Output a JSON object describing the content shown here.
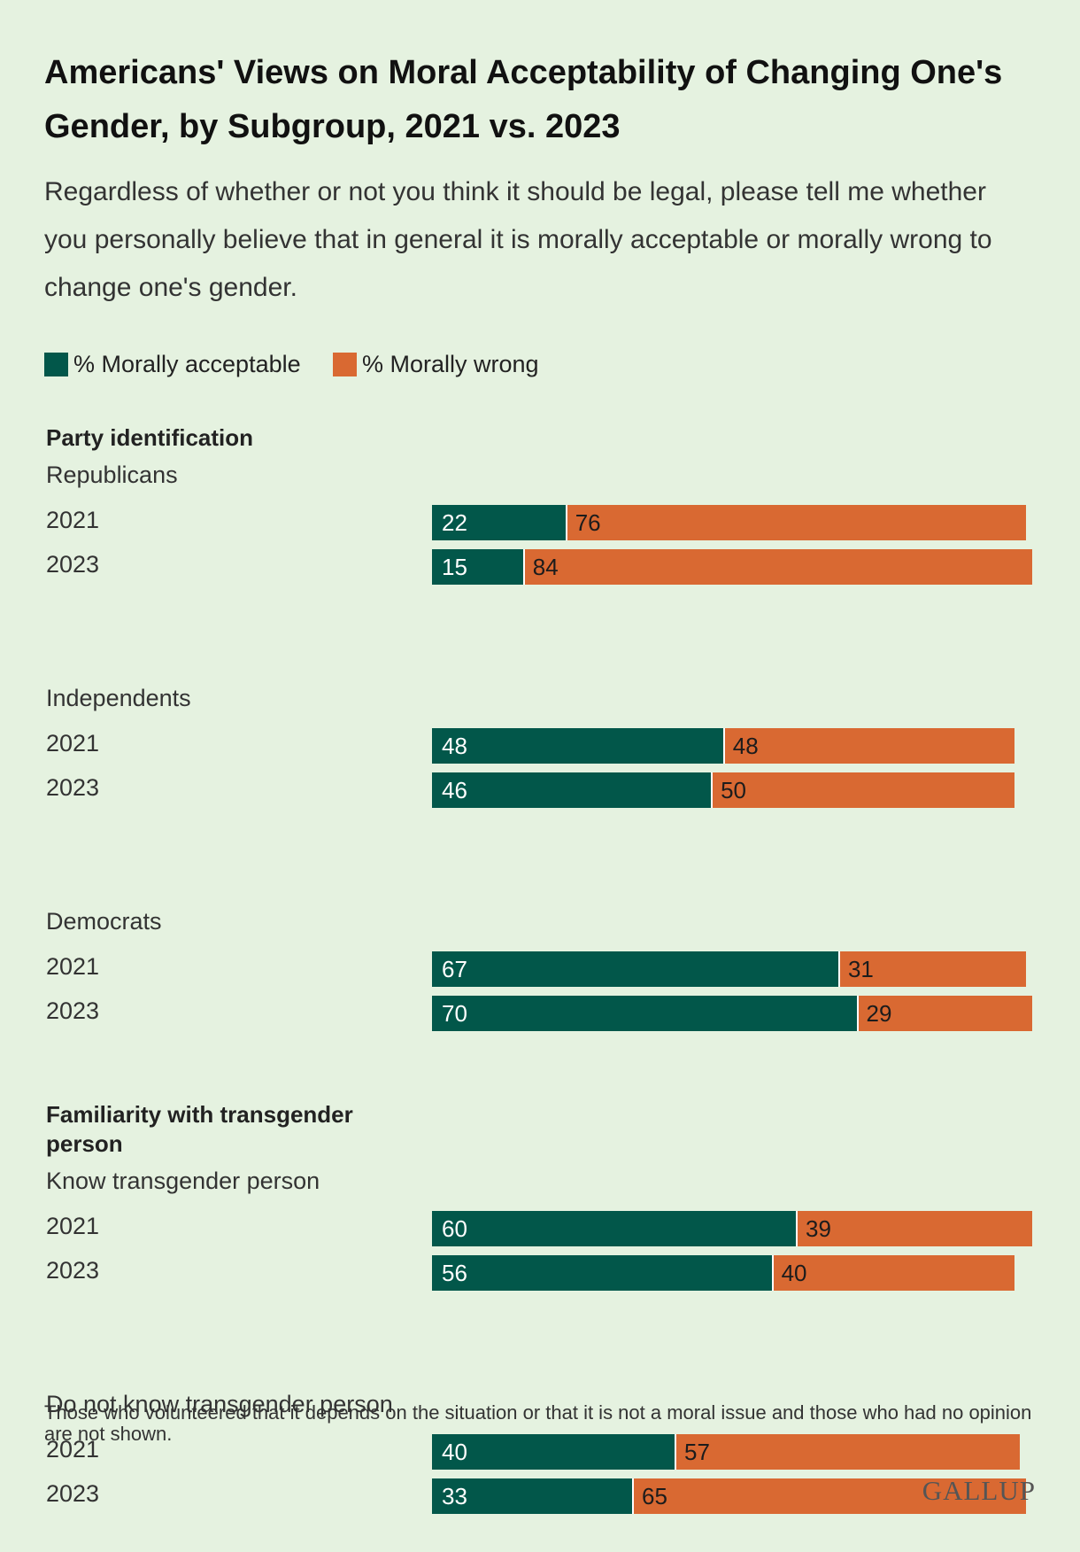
{
  "title": "Americans' Views on Moral Acceptability of Changing One's Gender, by Subgroup, 2021 vs. 2023",
  "subtitle": "Regardless of whether or not you think it should be legal, please tell me whether you personally believe that in general it is morally acceptable or morally wrong to change one's gender.",
  "footnote": "Those who volunteered that it depends on the situation or that it is not a moral issue and those who had no opinion are not shown.",
  "logo": "GALLUP",
  "colors": {
    "acceptable": "#02574a",
    "wrong": "#d96932",
    "background": "#e5f2e0"
  },
  "chart_data": {
    "type": "bar",
    "orientation": "horizontal",
    "stacked": true,
    "xlim": [
      0,
      100
    ],
    "legend": {
      "position": "top-left",
      "entries": [
        "% Morally acceptable",
        "% Morally wrong"
      ]
    },
    "series": [
      {
        "name": "% Morally acceptable",
        "color": "#02574a"
      },
      {
        "name": "% Morally wrong",
        "color": "#d96932"
      }
    ],
    "sections": [
      {
        "label": "Party identification",
        "groups": [
          {
            "label": "Republicans",
            "rows": [
              {
                "year": "2021",
                "acceptable": 22,
                "wrong": 76
              },
              {
                "year": "2023",
                "acceptable": 15,
                "wrong": 84
              }
            ]
          },
          {
            "label": "Independents",
            "rows": [
              {
                "year": "2021",
                "acceptable": 48,
                "wrong": 48
              },
              {
                "year": "2023",
                "acceptable": 46,
                "wrong": 50
              }
            ]
          },
          {
            "label": "Democrats",
            "rows": [
              {
                "year": "2021",
                "acceptable": 67,
                "wrong": 31
              },
              {
                "year": "2023",
                "acceptable": 70,
                "wrong": 29
              }
            ]
          }
        ]
      },
      {
        "label": "Familiarity with transgender person",
        "groups": [
          {
            "label": "Know transgender person",
            "rows": [
              {
                "year": "2021",
                "acceptable": 60,
                "wrong": 39
              },
              {
                "year": "2023",
                "acceptable": 56,
                "wrong": 40
              }
            ]
          },
          {
            "label": "Do not know transgender person",
            "rows": [
              {
                "year": "2021",
                "acceptable": 40,
                "wrong": 57
              },
              {
                "year": "2023",
                "acceptable": 33,
                "wrong": 65
              }
            ]
          }
        ]
      }
    ]
  }
}
